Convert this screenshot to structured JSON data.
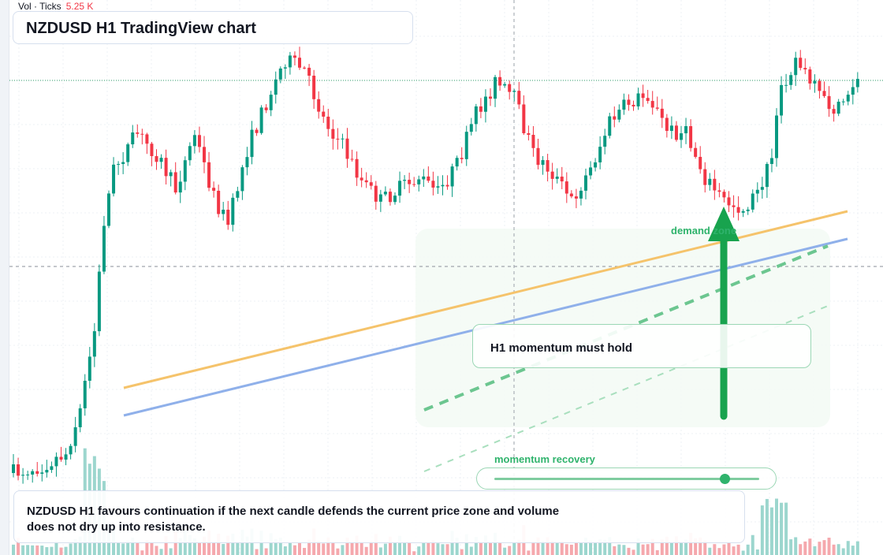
{
  "header": {
    "title": "NZDUSD H1 TradingView chart"
  },
  "volume_legend": {
    "label": "Vol · Ticks",
    "value": "5.25 K"
  },
  "annotations": {
    "zone_label": "demand zone",
    "momentum_label": "H1 momentum must hold",
    "slider_label": "momentum recovery",
    "slider_value": 0.87,
    "note": "NZDUSD H1 favours continuation if the next candle defends the current price zone and volume does not dry up into resistance."
  },
  "colors": {
    "bull": "#089981",
    "bear": "#f23645",
    "vol_bull": "#9cd6ce",
    "vol_bear": "#f5a8ad",
    "trend_orange": "#f5c36b",
    "trend_blue": "#8fb0ea",
    "accent_green": "#18a34e"
  },
  "icons": {
    "arrow": "arrow-up-icon"
  },
  "chart_data": {
    "type": "candlestick",
    "symbol": "NZDUSD",
    "timeframe": "H1",
    "candle_count": 150,
    "grid": true,
    "horizontal_reference": "dotted green line at recent highs",
    "crosshair": true,
    "trendlines": [
      "orange rising",
      "blue rising",
      "green dashed rising"
    ]
  }
}
